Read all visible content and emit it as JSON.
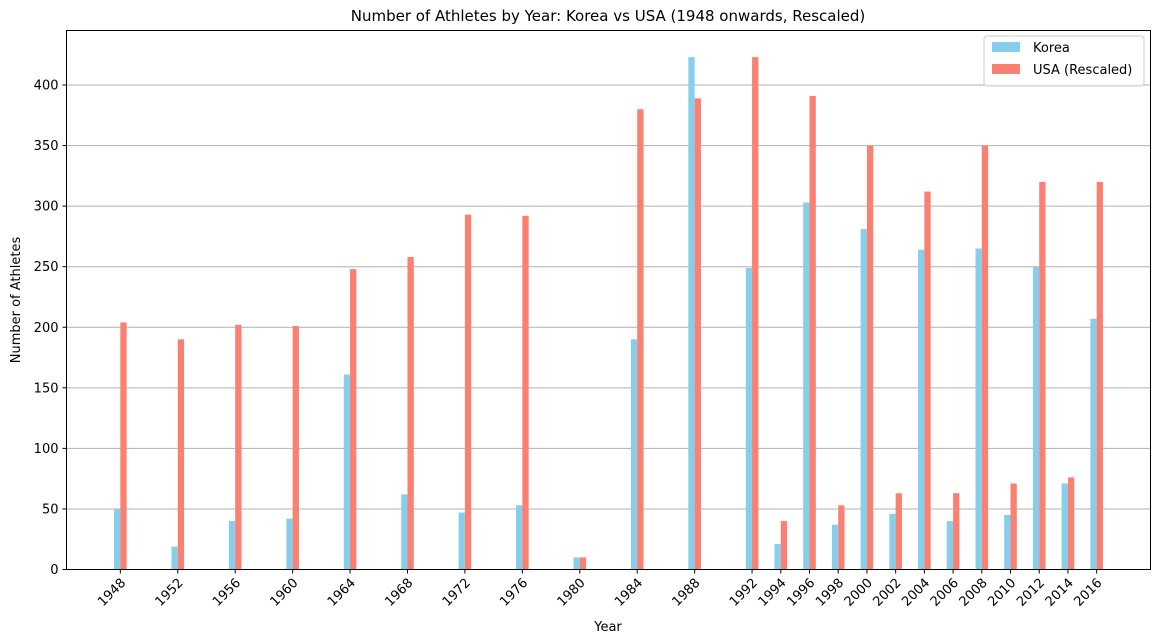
{
  "chart_data": {
    "type": "bar",
    "title": "Number of Athletes by Year: Korea vs USA (1948 onwards, Rescaled)",
    "xlabel": "Year",
    "ylabel": "Number of Athletes",
    "ylim": [
      0,
      445
    ],
    "yticks": [
      0,
      50,
      100,
      150,
      200,
      250,
      300,
      350,
      400
    ],
    "grid": "y",
    "legend_position": "top-right",
    "categories": [
      "1948",
      "1952",
      "1956",
      "1960",
      "1964",
      "1968",
      "1972",
      "1976",
      "1980",
      "1984",
      "1988",
      "1992",
      "1994",
      "1996",
      "1998",
      "2000",
      "2002",
      "2004",
      "2006",
      "2008",
      "2010",
      "2012",
      "2014",
      "2016"
    ],
    "series": [
      {
        "name": "Korea",
        "color": "#87ceeb",
        "values": [
          50,
          19,
          40,
          42,
          161,
          62,
          47,
          53,
          10,
          190,
          423,
          249,
          21,
          303,
          37,
          281,
          46,
          264,
          40,
          265,
          45,
          250,
          71,
          207
        ]
      },
      {
        "name": "USA (Rescaled)",
        "color": "#fa8072",
        "values": [
          204,
          190,
          202,
          201,
          248,
          258,
          293,
          292,
          10,
          380,
          389,
          423,
          40,
          391,
          53,
          350,
          63,
          312,
          63,
          350,
          71,
          320,
          76,
          320
        ]
      }
    ]
  }
}
